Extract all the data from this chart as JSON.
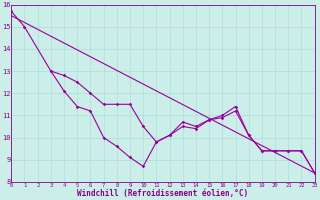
{
  "title": "",
  "xlabel": "Windchill (Refroidissement éolien,°C)",
  "bg_color": "#cceee8",
  "grid_color": "#aadddd",
  "line_color": "#990099",
  "x_min": 0,
  "x_max": 23,
  "y_min": 8,
  "y_max": 16,
  "series1_x": [
    0,
    1,
    3,
    4,
    5,
    6,
    7,
    8,
    9,
    10,
    11,
    12,
    13,
    14,
    15,
    16,
    17,
    18,
    19,
    20,
    21,
    22,
    23
  ],
  "series1_y": [
    15.7,
    15.0,
    13.0,
    12.1,
    11.4,
    11.2,
    10.0,
    9.6,
    9.1,
    8.7,
    9.8,
    10.1,
    10.7,
    10.5,
    10.8,
    11.0,
    11.4,
    10.1,
    9.4,
    9.4,
    9.4,
    9.4,
    8.4
  ],
  "series2_x": [
    3,
    4,
    5,
    6,
    7,
    8,
    9,
    10,
    11,
    12,
    13,
    14,
    15,
    16,
    17,
    18,
    19,
    20,
    21,
    22,
    23
  ],
  "series2_y": [
    13.0,
    12.8,
    12.5,
    12.0,
    11.5,
    11.5,
    11.5,
    10.5,
    9.8,
    10.1,
    10.5,
    10.4,
    10.8,
    10.9,
    11.2,
    10.1,
    9.4,
    9.4,
    9.4,
    9.4,
    8.4
  ],
  "trend_x": [
    0,
    23
  ],
  "trend_y": [
    15.5,
    8.4
  ]
}
